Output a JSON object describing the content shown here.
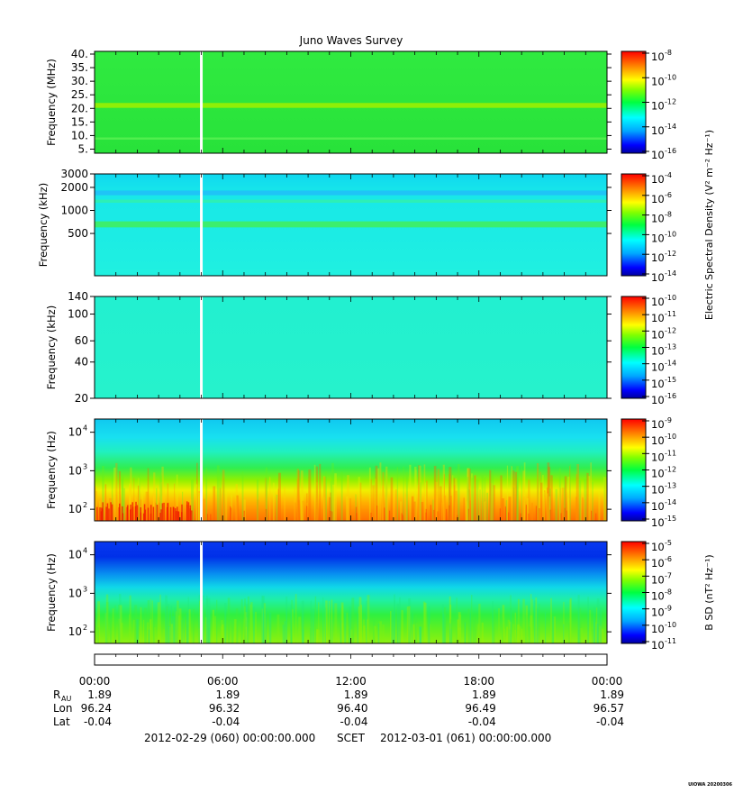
{
  "title": "Juno Waves Survey",
  "credit": "UIOWA 20200306",
  "chart_data": [
    {
      "type": "heatmap",
      "panel": "p1",
      "ylabel": "Frequency (MHz)",
      "y_scale": "linear",
      "ylim": [
        3.5,
        41
      ],
      "yticks": [
        {
          "v": 40,
          "label": "40."
        },
        {
          "v": 35,
          "label": "35."
        },
        {
          "v": 30,
          "label": "30."
        },
        {
          "v": 25,
          "label": "25."
        },
        {
          "v": 20,
          "label": "20."
        },
        {
          "v": 15,
          "label": "15."
        },
        {
          "v": 10,
          "label": "10."
        },
        {
          "v": 5,
          "label": "5."
        }
      ],
      "bands": [
        {
          "from": 20.2,
          "to": 22.0,
          "color": "#9af000"
        },
        {
          "from": 8.5,
          "to": 9.3,
          "color": "#55f050"
        }
      ],
      "background": "#2ce83c",
      "colorbar": {
        "label": "",
        "ticks": [
          "-8",
          "-10",
          "-12",
          "-14",
          "-16"
        ]
      }
    },
    {
      "type": "heatmap",
      "panel": "p2",
      "ylabel": "Frequency (kHz)",
      "y_scale": "log",
      "ylim": [
        140,
        3000
      ],
      "yticks": [
        {
          "v": 3000,
          "label": "3000"
        },
        {
          "v": 2000,
          "label": "2000"
        },
        {
          "v": 1000,
          "label": "1000"
        },
        {
          "v": 500,
          "label": "500"
        }
      ],
      "bands": [
        {
          "from": 1580,
          "to": 1820,
          "color": "#20c0f8"
        },
        {
          "from": 1260,
          "to": 1380,
          "color": "#30f0b0"
        },
        {
          "from": 600,
          "to": 720,
          "color": "#40ee60"
        }
      ],
      "background": "#20f0e0",
      "colorbar": {
        "label": "Electric Spectral Density (V² m⁻² Hz⁻¹)",
        "ticks": [
          "-4",
          "-6",
          "-8",
          "-10",
          "-12",
          "-14"
        ]
      }
    },
    {
      "type": "heatmap",
      "panel": "p3",
      "ylabel": "Frequency (kHz)",
      "y_scale": "log",
      "ylim": [
        20,
        140
      ],
      "yticks": [
        {
          "v": 140,
          "label": "140"
        },
        {
          "v": 100,
          "label": "100"
        },
        {
          "v": 60,
          "label": "60"
        },
        {
          "v": 40,
          "label": "40"
        },
        {
          "v": 20,
          "label": "20"
        }
      ],
      "bands": [],
      "background": "#22f0d4",
      "colorbar": {
        "label": "",
        "ticks": [
          "-10",
          "-11",
          "-12",
          "-13",
          "-14",
          "-15",
          "-16"
        ]
      }
    },
    {
      "type": "heatmap",
      "panel": "p4",
      "ylabel": "Frequency (Hz)",
      "y_scale": "log",
      "ylim": [
        50,
        22000
      ],
      "yticks": [
        {
          "v": 10000,
          "label": "10",
          "sup": "4"
        },
        {
          "v": 1000,
          "label": "10",
          "sup": "3"
        },
        {
          "v": 100,
          "label": "10",
          "sup": "2"
        }
      ],
      "bands": [],
      "background": "#20e8e8",
      "colorbar": {
        "label": "",
        "ticks": [
          "-9",
          "-10",
          "-11",
          "-12",
          "-13",
          "-14",
          "-15"
        ]
      }
    },
    {
      "type": "heatmap",
      "panel": "p5",
      "ylabel": "Frequency (Hz)",
      "y_scale": "log",
      "ylim": [
        50,
        22000
      ],
      "yticks": [
        {
          "v": 10000,
          "label": "10",
          "sup": "4"
        },
        {
          "v": 1000,
          "label": "10",
          "sup": "3"
        },
        {
          "v": 100,
          "label": "10",
          "sup": "2"
        }
      ],
      "bands": [],
      "background": "#40e070",
      "colorbar": {
        "label": "B SD (nT² Hz⁻¹)",
        "ticks": [
          "-5",
          "-6",
          "-7",
          "-8",
          "-9",
          "-10",
          "-11"
        ]
      }
    }
  ],
  "data_gap_hour": 5.0,
  "x_axis": {
    "ticks": [
      "00:00",
      "06:00",
      "12:00",
      "18:00",
      "00:00"
    ],
    "tick_hours": [
      0,
      6,
      12,
      18,
      24
    ]
  },
  "ephemeris": {
    "rows": [
      {
        "label": "R",
        "sub": "AU",
        "values": [
          "1.89",
          "1.89",
          "1.89",
          "1.89",
          "1.89"
        ]
      },
      {
        "label": "Lon",
        "sub": "",
        "values": [
          "96.24",
          "96.32",
          "96.40",
          "96.49",
          "96.57"
        ]
      },
      {
        "label": "Lat",
        "sub": "",
        "values": [
          "-0.04",
          "-0.04",
          "-0.04",
          "-0.04",
          "-0.04"
        ]
      }
    ]
  },
  "footer": {
    "start": "2012-02-29 (060) 00:00:00.000",
    "frame": "SCET",
    "end": "2012-03-01 (061) 00:00:00.000"
  }
}
